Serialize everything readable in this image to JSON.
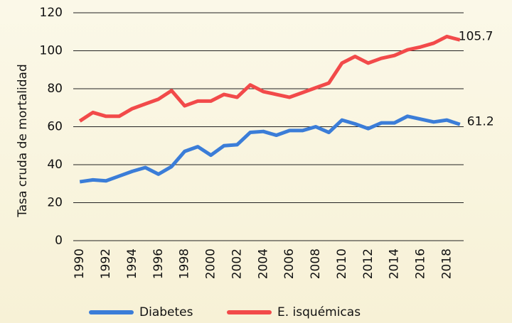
{
  "chart_data": {
    "type": "line",
    "y_label": "Tasa cruda de mortalidad",
    "x": [
      1990,
      1991,
      1992,
      1993,
      1994,
      1995,
      1996,
      1997,
      1998,
      1999,
      2000,
      2001,
      2002,
      2003,
      2004,
      2005,
      2006,
      2007,
      2008,
      2009,
      2010,
      2011,
      2012,
      2013,
      2014,
      2015,
      2016,
      2017,
      2018,
      2019
    ],
    "series": [
      {
        "name": "Diabetes",
        "color": "#3b7dd8",
        "values": [
          31,
          32,
          31.5,
          34,
          36.5,
          38.5,
          35,
          39,
          47,
          49.5,
          45,
          50,
          50.5,
          57,
          57.5,
          55.5,
          58,
          58,
          60,
          57,
          63.5,
          61.5,
          59,
          62,
          62,
          65.5,
          64,
          62.5,
          63.5,
          61.2
        ]
      },
      {
        "name": "E. isquémicas",
        "color": "#f24a4a",
        "values": [
          63,
          67.5,
          65.5,
          65.5,
          69.5,
          72,
          74.5,
          79,
          71,
          73.5,
          73.5,
          77,
          75.5,
          82,
          78.5,
          77,
          75.5,
          78,
          80.5,
          83,
          93.5,
          97,
          93.5,
          96,
          97.5,
          100.5,
          102,
          104,
          107.5,
          105.7
        ]
      }
    ],
    "xlim": [
      1989.5,
      2019.5
    ],
    "xticks": [
      1990,
      1992,
      1994,
      1996,
      1998,
      2000,
      2002,
      2004,
      2006,
      2008,
      2010,
      2012,
      2014,
      2016,
      2018
    ],
    "ylim": [
      0,
      120
    ],
    "yticks": [
      0,
      20,
      40,
      60,
      80,
      100,
      120
    ],
    "grid": true
  }
}
